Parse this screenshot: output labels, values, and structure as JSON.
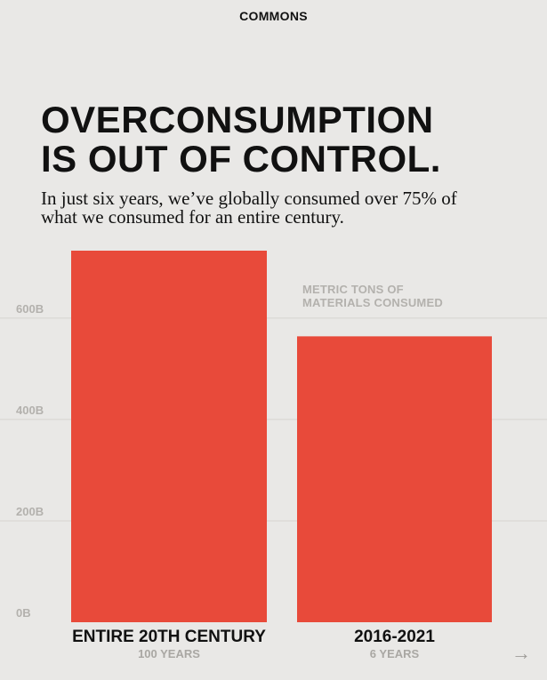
{
  "brand": "COMMONS",
  "title_lines": [
    "OVERCONSUMPTION",
    "IS OUT OF CONTROL."
  ],
  "subtitle_lines": [
    "In just six years, we’ve globally consumed over 75% of",
    "what we consumed for an entire century."
  ],
  "legend_lines": [
    "METRIC TONS OF",
    "MATERIALS CONSUMED"
  ],
  "nav": {
    "next_icon": "arrow-right-icon",
    "next_glyph": "→"
  },
  "colors": {
    "bar": "#e84a3a",
    "background": "#e9e8e6",
    "grid": "#d6d4d0",
    "tick": "#b3b1ad",
    "sublabel": "#a9a7a3",
    "text": "#111111"
  },
  "chart_data": {
    "type": "bar",
    "title": "OVERCONSUMPTION IS OUT OF CONTROL.",
    "ylabel": "METRIC TONS OF MATERIALS CONSUMED",
    "categories": [
      "ENTIRE 20TH CENTURY",
      "2016-2021"
    ],
    "sublabels": [
      "100 YEARS",
      "6 YEARS"
    ],
    "values": [
      733,
      564
    ],
    "unit": "billion metric tons",
    "ylim": [
      0,
      733
    ],
    "yticks": [
      0,
      200,
      400,
      600
    ],
    "ytick_labels": [
      "0B",
      "200B",
      "400B",
      "600B"
    ],
    "grid": true,
    "legend_position": "top-right"
  }
}
